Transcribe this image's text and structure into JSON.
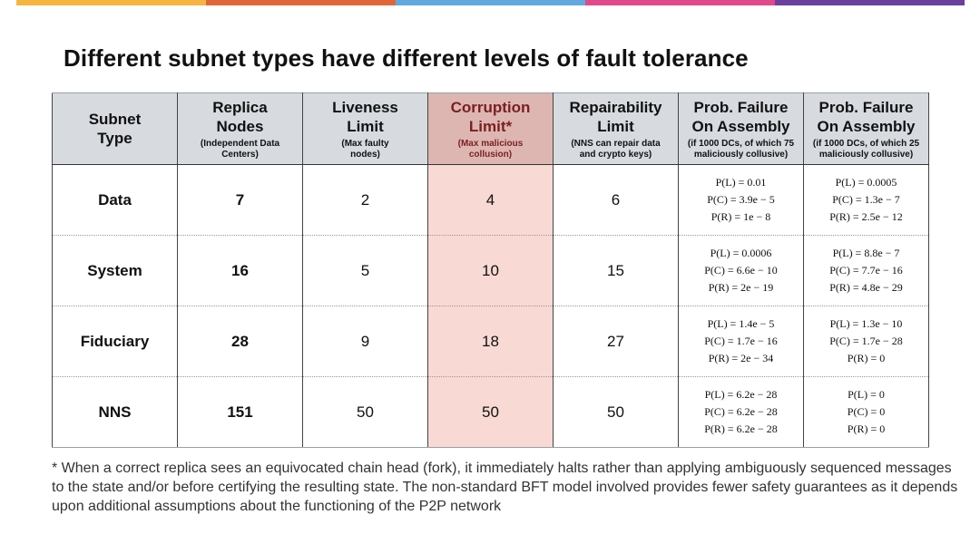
{
  "colors": {
    "top_bar": [
      "#f5b540",
      "#e0663a",
      "#62a8e0",
      "#e0498a",
      "#6b3f9e"
    ],
    "header_bg": "#d7dbe0",
    "highlight_header_bg": "#ddb6b2",
    "highlight_cell_bg": "#f9d9d4"
  },
  "title": "Different subnet types have different levels of fault tolerance",
  "headers": [
    {
      "main": "Subnet Type",
      "sub": ""
    },
    {
      "main": "Replica Nodes",
      "sub": "(Independent Data Centers)"
    },
    {
      "main": "Liveness Limit",
      "sub": "(Max faulty nodes)"
    },
    {
      "main": "Corruption Limit*",
      "sub": "(Max malicious collusion)"
    },
    {
      "main": "Repairability Limit",
      "sub": "(NNS can repair data and crypto keys)"
    },
    {
      "main": "Prob. Failure On Assembly",
      "sub": "(if 1000 DCs, of which 75 maliciously collusive)"
    },
    {
      "main": "Prob. Failure On Assembly",
      "sub": "(if 1000 DCs, of which 25 maliciously collusive)"
    }
  ],
  "rows": [
    {
      "type": "Data",
      "nodes": "7",
      "liveness": "2",
      "corruption": "4",
      "repair": "6",
      "prob75": [
        "P(L) = 0.01",
        "P(C) = 3.9e − 5",
        "P(R) = 1e − 8"
      ],
      "prob25": [
        "P(L) = 0.0005",
        "P(C) = 1.3e − 7",
        "P(R) = 2.5e − 12"
      ]
    },
    {
      "type": "System",
      "nodes": "16",
      "liveness": "5",
      "corruption": "10",
      "repair": "15",
      "prob75": [
        "P(L) = 0.0006",
        "P(C) = 6.6e − 10",
        "P(R) = 2e − 19"
      ],
      "prob25": [
        "P(L) = 8.8e − 7",
        "P(C) = 7.7e − 16",
        "P(R) = 4.8e − 29"
      ]
    },
    {
      "type": "Fiduciary",
      "nodes": "28",
      "liveness": "9",
      "corruption": "18",
      "repair": "27",
      "prob75": [
        "P(L) = 1.4e − 5",
        "P(C) = 1.7e − 16",
        "P(R) = 2e − 34"
      ],
      "prob25": [
        "P(L) = 1.3e − 10",
        "P(C) = 1.7e − 28",
        "P(R) = 0"
      ]
    },
    {
      "type": "NNS",
      "nodes": "151",
      "liveness": "50",
      "corruption": "50",
      "repair": "50",
      "prob75": [
        "P(L) = 6.2e − 28",
        "P(C) = 6.2e − 28",
        "P(R) = 6.2e − 28"
      ],
      "prob25": [
        "P(L) = 0",
        "P(C) = 0",
        "P(R) = 0"
      ]
    }
  ],
  "footnote": "* When a correct replica sees an equivocated chain head (fork), it immediately halts rather than applying ambiguously sequenced messages to the state and/or before certifying the resulting state. The non-standard BFT model involved provides fewer safety guarantees as it depends upon additional assumptions about the functioning of the P2P network"
}
